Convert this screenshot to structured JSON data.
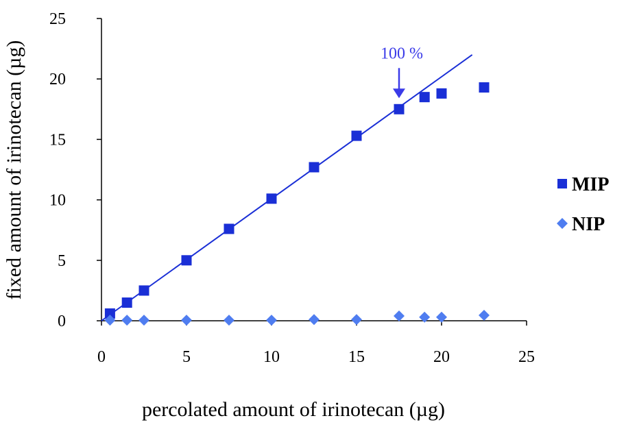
{
  "chart_data": {
    "type": "scatter",
    "title": "",
    "xlabel": "percolated amount of irinotecan (µg)",
    "ylabel": "fixed amount of irinotecan (µg)",
    "xlim": [
      0,
      25
    ],
    "ylim": [
      0,
      25
    ],
    "xticks": [
      0,
      5,
      10,
      15,
      20,
      25
    ],
    "yticks": [
      0,
      5,
      10,
      15,
      20,
      25
    ],
    "xtick_labels": [
      "0",
      "5",
      "10",
      "15",
      "20",
      "25"
    ],
    "ytick_labels": [
      "0",
      "5",
      "10",
      "15",
      "20",
      "25"
    ],
    "grid": false,
    "legend_position": "right",
    "series": [
      {
        "name": "MIP",
        "marker": "square",
        "color": "#1a2fd6",
        "x": [
          0.5,
          1.5,
          2.5,
          5,
          7.5,
          10,
          12.5,
          15,
          17.5,
          19,
          20,
          22.5
        ],
        "y": [
          0.6,
          1.5,
          2.5,
          5.0,
          7.6,
          10.1,
          12.7,
          15.3,
          17.5,
          18.5,
          18.8,
          19.3
        ]
      },
      {
        "name": "NIP",
        "marker": "diamond",
        "color": "#4f7df0",
        "x": [
          0.5,
          1.5,
          2.5,
          5,
          7.5,
          10,
          12.5,
          15,
          17.5,
          19,
          20,
          22.5
        ],
        "y": [
          0.05,
          0.05,
          0.05,
          0.05,
          0.05,
          0.05,
          0.1,
          0.1,
          0.4,
          0.3,
          0.3,
          0.45
        ]
      }
    ],
    "trendline": {
      "series": "MIP",
      "color": "#1a2fd6",
      "x": [
        0,
        21.8
      ],
      "y": [
        0,
        22.0
      ]
    },
    "annotation": {
      "text": "100 %",
      "color": "#3b3be8",
      "x": 17.5,
      "y": 17.5
    },
    "axis_color": "#000000"
  }
}
